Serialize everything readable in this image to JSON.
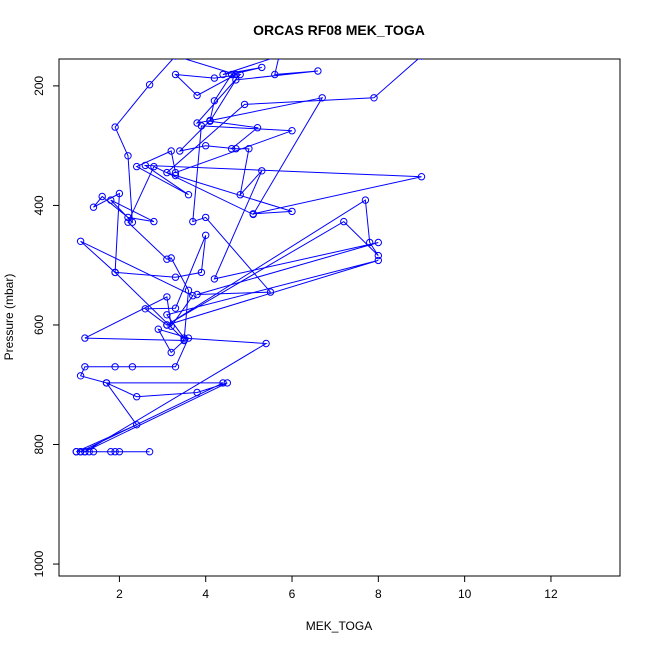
{
  "chart_data": {
    "type": "line",
    "title": "ORCAS RF08 MEK_TOGA",
    "xlabel": "MEK_TOGA",
    "ylabel": "Pressure (mbar)",
    "xlim": [
      0.6,
      13.6
    ],
    "ylim": [
      1020,
      155
    ],
    "x_ticks": [
      2,
      4,
      6,
      8,
      10,
      12
    ],
    "y_ticks": [
      200,
      400,
      600,
      800,
      1000
    ],
    "colors": {
      "series": "#0000ff",
      "axis": "#000000"
    },
    "series": [
      {
        "points": [
          [
            1.0,
            812
          ],
          [
            1.1,
            812
          ],
          [
            1.2,
            812
          ],
          [
            1.3,
            812
          ],
          [
            1.4,
            812
          ],
          [
            1.8,
            812
          ],
          [
            1.9,
            812
          ],
          [
            2.0,
            812
          ],
          [
            2.7,
            812
          ],
          [
            1.0,
            812
          ],
          [
            2.4,
            767
          ],
          [
            1.7,
            697
          ],
          [
            1.1,
            685
          ],
          [
            1.2,
            670
          ],
          [
            1.9,
            670
          ],
          [
            2.3,
            670
          ],
          [
            3.3,
            670
          ],
          [
            3.6,
            622
          ],
          [
            2.9,
            607
          ],
          [
            3.2,
            646
          ],
          [
            3.5,
            626
          ],
          [
            1.2,
            622
          ],
          [
            3.1,
            553
          ],
          [
            3.2,
            602
          ],
          [
            3.7,
            551
          ],
          [
            1.1,
            460
          ],
          [
            1.9,
            512
          ],
          [
            2.0,
            380
          ],
          [
            1.4,
            403
          ],
          [
            1.6,
            385
          ],
          [
            2.2,
            420
          ],
          [
            2.8,
            427
          ],
          [
            1.8,
            391
          ],
          [
            2.3,
            428
          ],
          [
            2.2,
            317
          ],
          [
            1.9,
            269
          ],
          [
            2.7,
            198
          ],
          [
            3.3,
            150
          ],
          [
            4.7,
            181
          ],
          [
            3.8,
            216
          ],
          [
            3.3,
            181
          ],
          [
            4.2,
            187
          ],
          [
            4.8,
            181
          ],
          [
            3.8,
            262
          ],
          [
            4.1,
            258
          ],
          [
            4.2,
            225
          ],
          [
            4.6,
            181
          ],
          [
            5.3,
            169
          ],
          [
            4.4,
            181
          ],
          [
            5.7,
            150
          ],
          [
            5.6,
            181
          ],
          [
            6.6,
            175
          ],
          [
            4.7,
            190
          ],
          [
            4.1,
            259
          ],
          [
            5.2,
            270
          ],
          [
            4.6,
            305
          ],
          [
            5.0,
            305
          ],
          [
            4.8,
            382
          ],
          [
            5.3,
            342
          ],
          [
            4.2,
            523
          ],
          [
            8.0,
            462
          ],
          [
            3.8,
            549
          ],
          [
            5.5,
            545
          ],
          [
            4.0,
            420
          ],
          [
            3.7,
            427
          ],
          [
            3.9,
            267
          ],
          [
            6.0,
            275
          ],
          [
            3.3,
            345
          ],
          [
            3.2,
            309
          ],
          [
            2.4,
            335
          ],
          [
            3.6,
            382
          ],
          [
            2.6,
            333
          ],
          [
            9.0,
            352
          ],
          [
            5.1,
            414
          ],
          [
            6.0,
            410
          ],
          [
            3.3,
            350
          ],
          [
            3.1,
            345
          ],
          [
            4.9,
            231
          ],
          [
            7.9,
            220
          ],
          [
            9.0,
            150
          ]
        ]
      },
      {
        "points": [
          [
            1.1,
            812
          ],
          [
            4.4,
            697
          ],
          [
            1.7,
            697
          ],
          [
            2.4,
            720
          ],
          [
            3.8,
            713
          ],
          [
            4.5,
            697
          ],
          [
            1.2,
            812
          ],
          [
            5.4,
            631
          ],
          [
            3.5,
            622
          ],
          [
            3.1,
            583
          ],
          [
            8.0,
            492
          ],
          [
            3.1,
            600
          ],
          [
            7.2,
            427
          ],
          [
            8.0,
            484
          ],
          [
            7.8,
            462
          ],
          [
            7.7,
            391
          ],
          [
            3.1,
            600
          ],
          [
            2.6,
            573
          ],
          [
            3.3,
            572
          ],
          [
            4.0,
            450
          ],
          [
            3.9,
            512
          ],
          [
            3.3,
            520
          ],
          [
            1.9,
            512
          ],
          [
            3.5,
            625
          ],
          [
            3.6,
            542
          ],
          [
            3.2,
            488
          ],
          [
            3.1,
            490
          ],
          [
            2.2,
            428
          ],
          [
            2.8,
            335
          ],
          [
            5.1,
            415
          ],
          [
            6.7,
            220
          ],
          [
            4.1,
            258
          ],
          [
            3.4,
            309
          ],
          [
            4.0,
            300
          ],
          [
            4.7,
            305
          ]
        ]
      }
    ]
  }
}
